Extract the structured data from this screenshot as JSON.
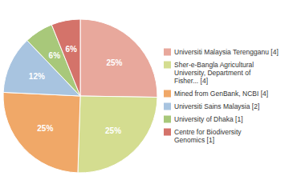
{
  "chart_data": {
    "type": "pie",
    "categories": [
      "Universiti Malaysia Terengganu [4]",
      "Sher-e-Bangla Agricultural\nUniversity, Department of\nFisher... [4]",
      "Mined from GenBank, NCBI [4]",
      "Universiti Sains Malaysia [2]",
      "University of Dhaka [1]",
      "Centre for Biodiversity\nGenomics [1]"
    ],
    "values": [
      25,
      25,
      25,
      12,
      6,
      6
    ],
    "value_labels": [
      "25%",
      "25%",
      "25%",
      "12%",
      "6%",
      "6%"
    ],
    "colors": [
      "#e8a89c",
      "#d4dd90",
      "#f0a868",
      "#a8c4e0",
      "#a8c87a",
      "#d4736a"
    ],
    "data_labels": true,
    "legend": "right"
  }
}
